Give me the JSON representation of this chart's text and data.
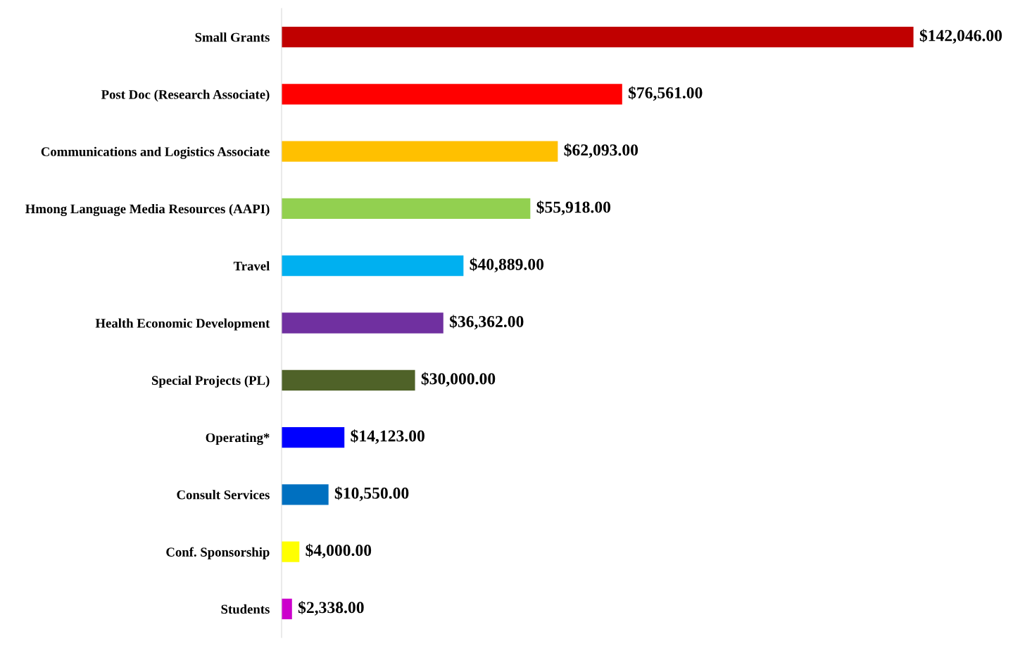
{
  "chart_data": {
    "type": "bar",
    "orientation": "horizontal",
    "categories": [
      "Small Grants",
      "Post Doc (Research Associate)",
      "Communications and Logistics Associate",
      "Hmong Language Media Resources (AAPI)",
      "Travel",
      "Health Economic Development",
      "Special Projects (PL)",
      "Operating*",
      "Consult Services",
      "Conf. Sponsorship",
      "Students"
    ],
    "values": [
      142046,
      76561,
      62093,
      55918,
      40889,
      36362,
      30000,
      14123,
      10550,
      4000,
      2338
    ],
    "colors": [
      "#c00000",
      "#ff0000",
      "#ffc000",
      "#92d050",
      "#00b0f0",
      "#7030a0",
      "#4f6228",
      "#0000ff",
      "#0070c0",
      "#ffff00",
      "#cc00cc"
    ],
    "value_labels": [
      "$142,046.00",
      "$76,561.00",
      "$62,093.00",
      "$55,918.00",
      "$40,889.00",
      "$36,362.00",
      "$30,000.00",
      "$14,123.00",
      "$10,550.00",
      "$4,000.00",
      "$2,338.00"
    ],
    "tick_labels": "y",
    "grid": false,
    "legend": false
  }
}
